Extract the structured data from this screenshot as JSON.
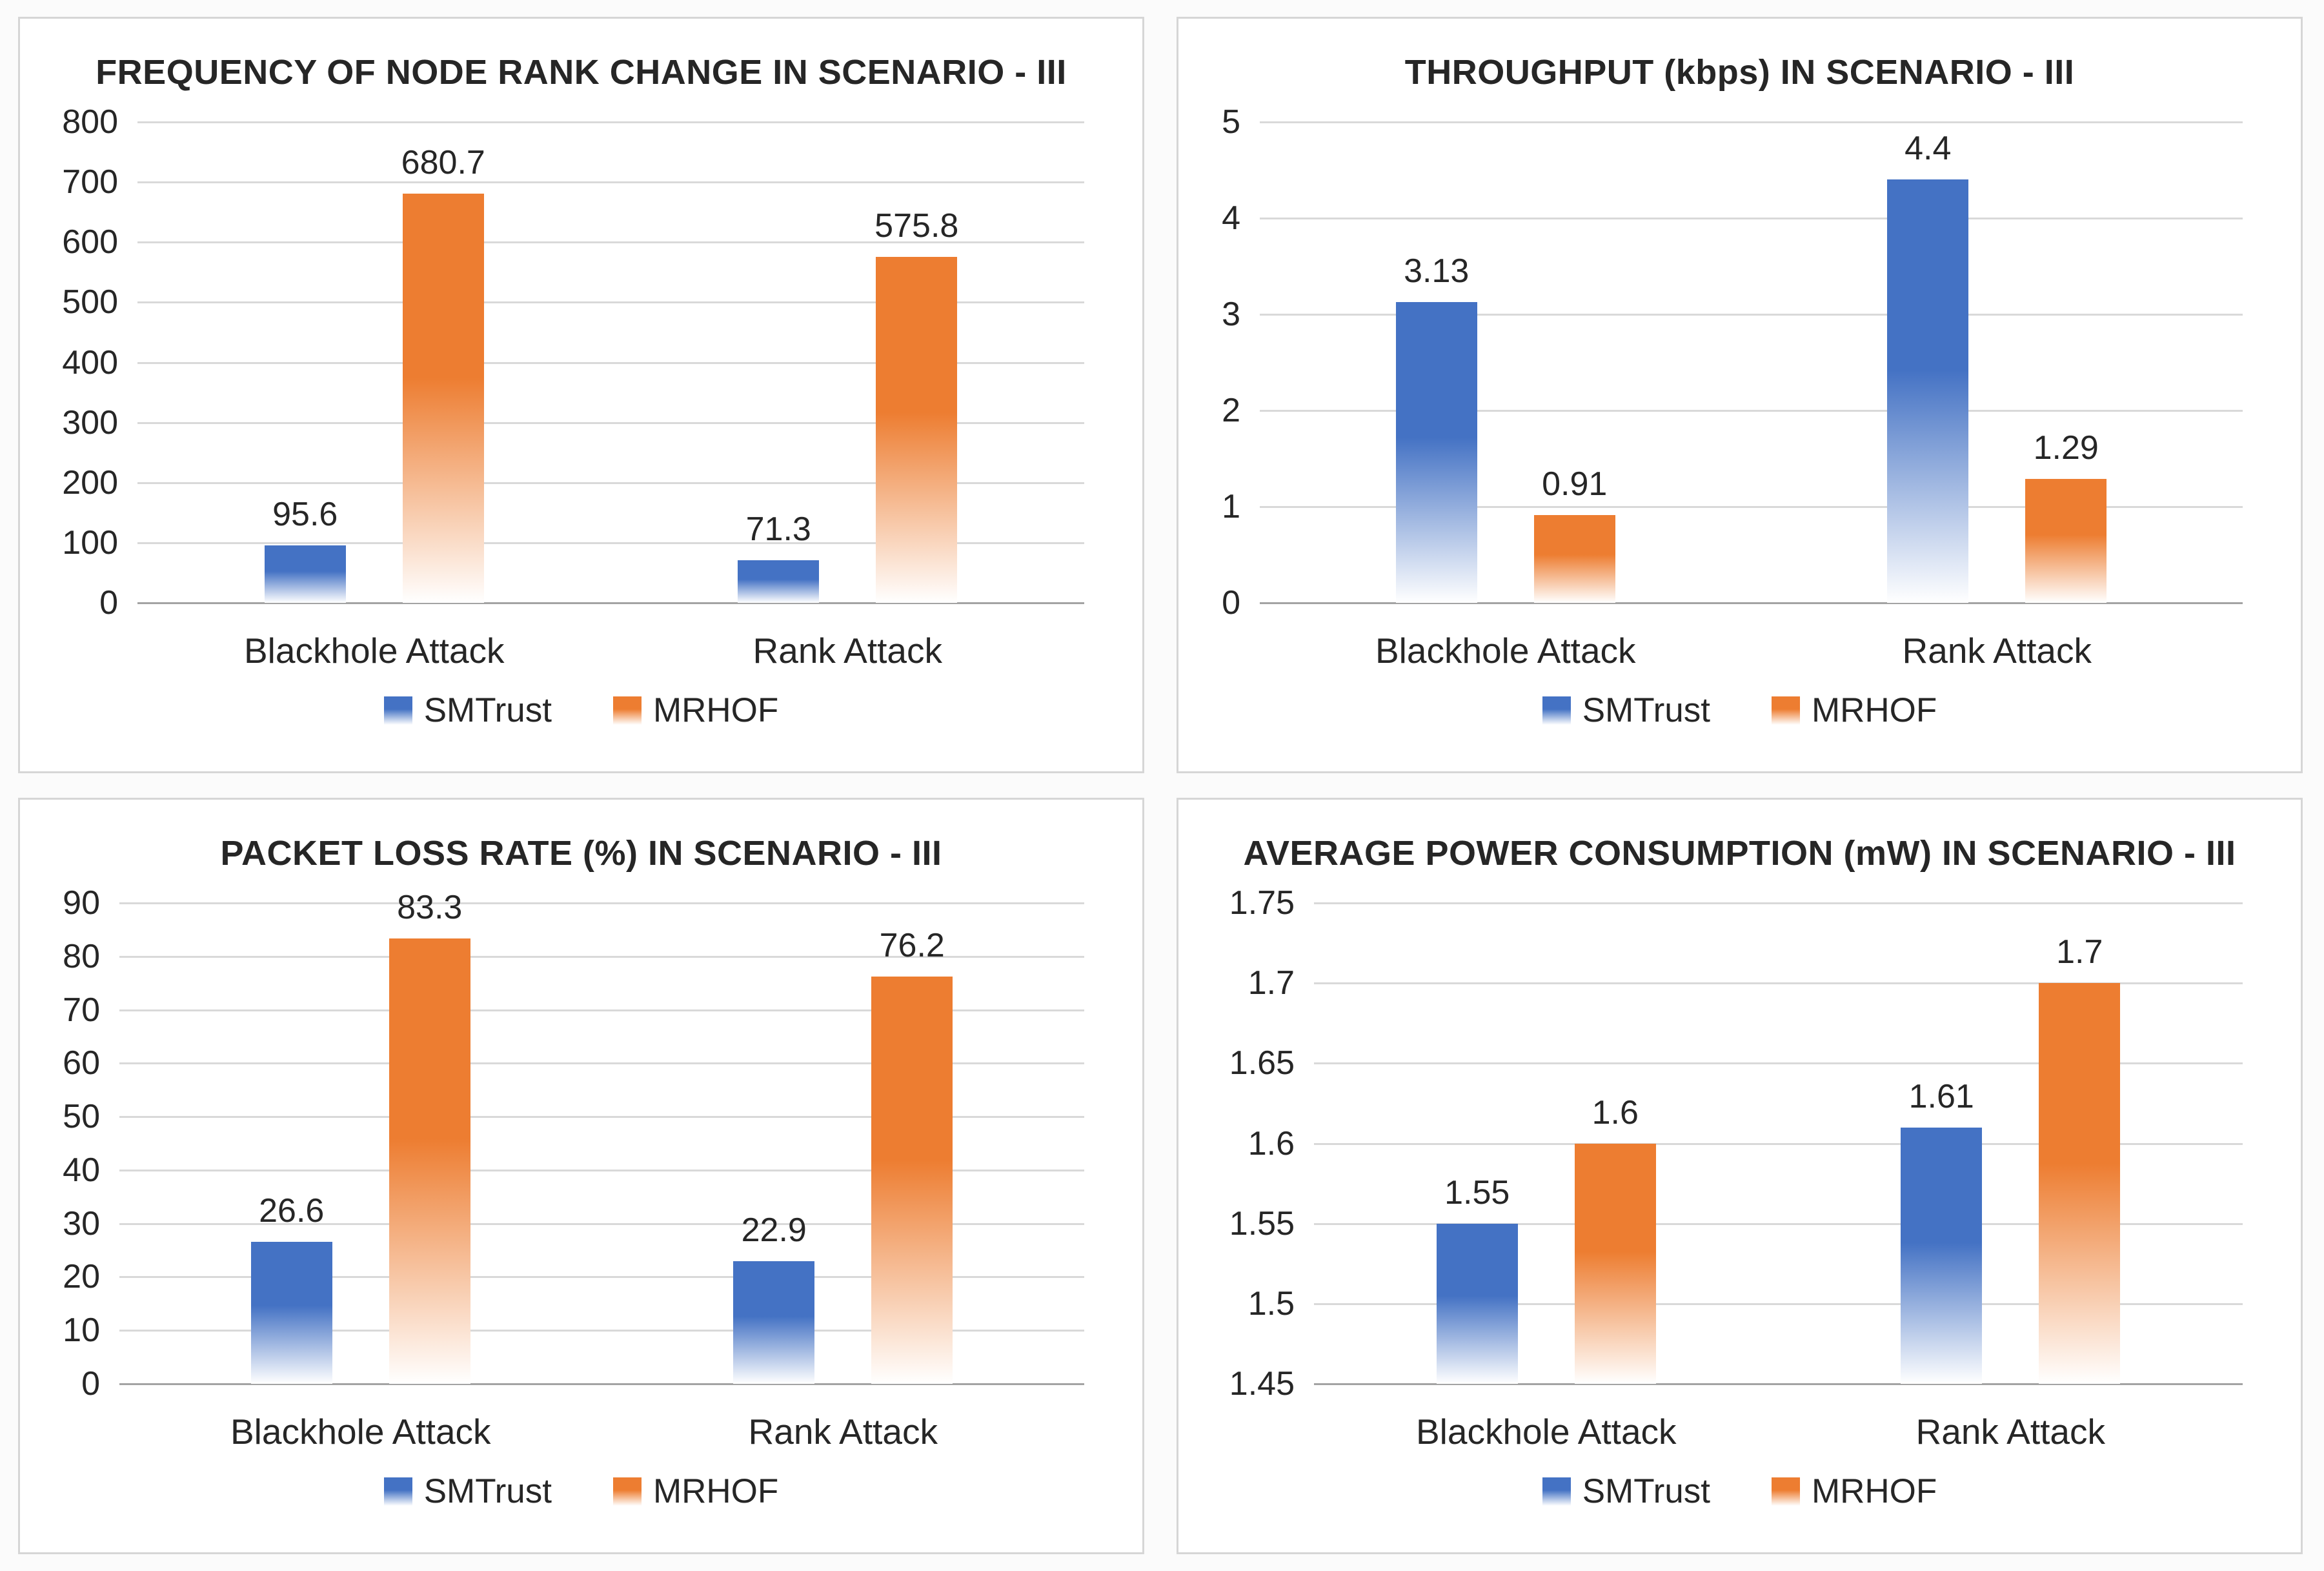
{
  "colors": {
    "smtrust": "#4472C4",
    "mrhof": "#ED7D31",
    "gridline": "#D9D9D9",
    "axis_line": "#A3A3A3",
    "panel_border": "#D6D6D6",
    "text": "#262626"
  },
  "legend": {
    "items": [
      {
        "label": "SMTrust",
        "color_key": "smtrust"
      },
      {
        "label": "MRHOF",
        "color_key": "mrhof"
      }
    ],
    "position": "bottom"
  },
  "chart_data": [
    {
      "type": "bar",
      "title": "FREQUENCY OF NODE RANK CHANGE IN SCENARIO - III",
      "categories": [
        "Blackhole Attack",
        "Rank Attack"
      ],
      "series": [
        {
          "name": "SMTrust",
          "values": [
            95.6,
            71.3
          ]
        },
        {
          "name": "MRHOF",
          "values": [
            680.7,
            575.8
          ]
        }
      ],
      "xlabel": "",
      "ylabel": "",
      "ylim": [
        0,
        800
      ],
      "y_tick_labels": [
        "0",
        "100",
        "200",
        "300",
        "400",
        "500",
        "600",
        "700",
        "800"
      ],
      "grid": true,
      "legend_position": "bottom"
    },
    {
      "type": "bar",
      "title": "THROUGHPUT (kbps) IN SCENARIO - III",
      "categories": [
        "Blackhole Attack",
        "Rank Attack"
      ],
      "series": [
        {
          "name": "SMTrust",
          "values": [
            3.13,
            4.4
          ]
        },
        {
          "name": "MRHOF",
          "values": [
            0.91,
            1.29
          ]
        }
      ],
      "xlabel": "",
      "ylabel": "",
      "ylim": [
        0,
        5
      ],
      "y_tick_labels": [
        "0",
        "1",
        "2",
        "3",
        "4",
        "5"
      ],
      "grid": true,
      "legend_position": "bottom"
    },
    {
      "type": "bar",
      "title": "PACKET LOSS RATE (%) IN SCENARIO - III",
      "categories": [
        "Blackhole Attack",
        "Rank Attack"
      ],
      "series": [
        {
          "name": "SMTrust",
          "values": [
            26.6,
            22.9
          ]
        },
        {
          "name": "MRHOF",
          "values": [
            83.3,
            76.2
          ]
        }
      ],
      "xlabel": "",
      "ylabel": "",
      "ylim": [
        0,
        90
      ],
      "y_tick_labels": [
        "0",
        "10",
        "20",
        "30",
        "40",
        "50",
        "60",
        "70",
        "80",
        "90"
      ],
      "grid": true,
      "legend_position": "bottom"
    },
    {
      "type": "bar",
      "title": "AVERAGE POWER CONSUMPTION (mW) IN SCENARIO - III",
      "categories": [
        "Blackhole Attack",
        "Rank Attack"
      ],
      "series": [
        {
          "name": "SMTrust",
          "values": [
            1.55,
            1.61
          ]
        },
        {
          "name": "MRHOF",
          "values": [
            1.6,
            1.7
          ]
        }
      ],
      "xlabel": "",
      "ylabel": "",
      "ylim": [
        1.45,
        1.75
      ],
      "y_tick_labels": [
        "1.45",
        "1.5",
        "1.55",
        "1.6",
        "1.65",
        "1.7",
        "1.75"
      ],
      "grid": true,
      "legend_position": "bottom"
    }
  ]
}
